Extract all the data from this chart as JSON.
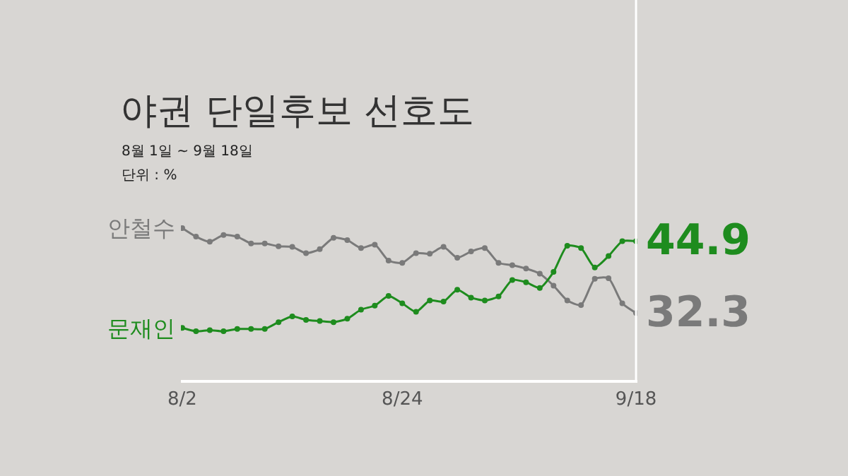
{
  "chart_data": {
    "type": "line",
    "title": "야권 단일후보 선호도",
    "subtitle": "8월 1일 ~ 9월 18일",
    "annotations": [
      "단위 : %"
    ],
    "categories": [
      "8/2",
      null,
      null,
      null,
      null,
      null,
      null,
      null,
      null,
      null,
      null,
      null,
      null,
      null,
      null,
      null,
      "8/24",
      null,
      null,
      null,
      null,
      null,
      null,
      null,
      null,
      null,
      null,
      null,
      null,
      null,
      null,
      null,
      null,
      "9/18"
    ],
    "series": [
      {
        "name": "안철수",
        "color": "#7a7a7a",
        "values": [
          47.2,
          45.7,
          44.8,
          46.0,
          45.7,
          44.5,
          44.5,
          44.0,
          43.9,
          42.8,
          43.5,
          45.5,
          45.1,
          43.7,
          44.3,
          41.5,
          41.1,
          42.8,
          42.7,
          43.9,
          42.0,
          43.1,
          43.7,
          41.1,
          40.7,
          40.1,
          39.2,
          37.1,
          34.5,
          33.7,
          38.3,
          38.4,
          34.0,
          32.3
        ],
        "value_labels": [
          null,
          null,
          null,
          null,
          null,
          null,
          null,
          null,
          null,
          null,
          null,
          null,
          null,
          null,
          null,
          null,
          null,
          null,
          null,
          null,
          null,
          null,
          null,
          null,
          null,
          null,
          null,
          null,
          null,
          null,
          null,
          null,
          null,
          "32.3"
        ]
      },
      {
        "name": "문재인",
        "color": "#1e8c1e",
        "values": [
          29.7,
          29.1,
          29.3,
          29.1,
          29.5,
          29.5,
          29.5,
          30.7,
          31.7,
          31.1,
          30.9,
          30.7,
          31.3,
          32.9,
          33.6,
          35.3,
          34.0,
          32.5,
          34.5,
          34.3,
          36.4,
          35.0,
          34.5,
          35.2,
          38.1,
          37.7,
          36.7,
          39.5,
          44.1,
          43.7,
          40.3,
          42.3,
          44.9,
          44.9
        ],
        "value_labels": [
          null,
          null,
          null,
          null,
          null,
          null,
          null,
          null,
          null,
          null,
          null,
          null,
          null,
          null,
          null,
          null,
          null,
          null,
          null,
          null,
          null,
          null,
          null,
          null,
          null,
          null,
          null,
          null,
          null,
          null,
          null,
          null,
          null,
          "44.9"
        ]
      }
    ],
    "tick_labels": "x",
    "grid": false,
    "legend": false,
    "marker": "circle",
    "line_style": "solid",
    "ref_lines": [
      {
        "axis": "x",
        "value": "9/18",
        "color": "#ffffff"
      }
    ]
  }
}
